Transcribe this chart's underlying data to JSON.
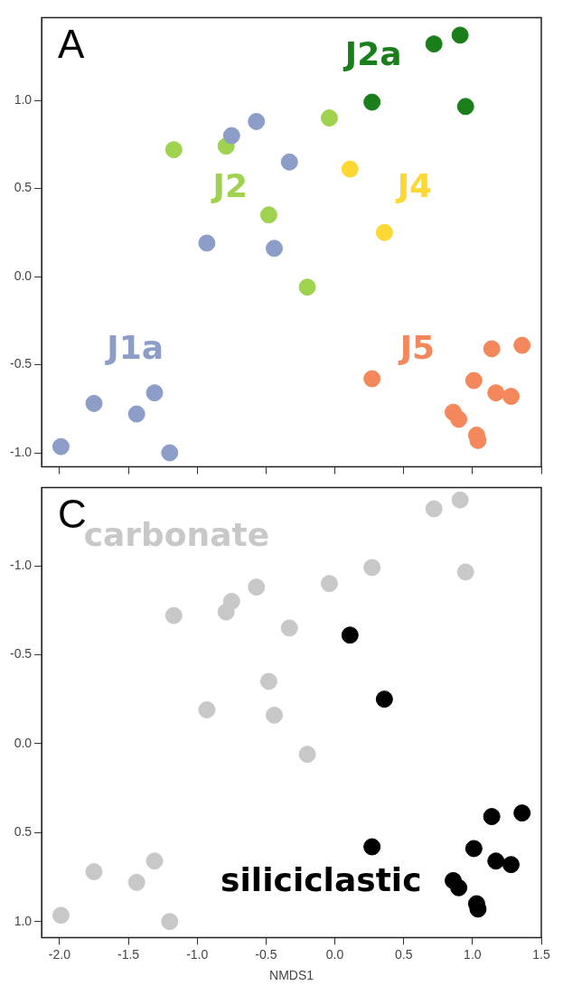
{
  "chart_data": [
    {
      "type": "scatter",
      "title": "A",
      "xlim": [
        -2.13,
        1.5
      ],
      "ylim": [
        -1.08,
        1.47
      ],
      "xticks": [
        {
          "value": -2.0,
          "label": null
        },
        {
          "value": -1.5,
          "label": null
        },
        {
          "value": -1.0,
          "label": null
        },
        {
          "value": -0.5,
          "label": null
        },
        {
          "value": 0.0,
          "label": null
        },
        {
          "value": 0.5,
          "label": null
        },
        {
          "value": 1.0,
          "label": null
        },
        {
          "value": 1.5,
          "label": null
        }
      ],
      "yticks": [
        {
          "value": -1.0,
          "label": "-1.0"
        },
        {
          "value": -0.5,
          "label": "-0.5"
        },
        {
          "value": 0.0,
          "label": "0.0"
        },
        {
          "value": 0.5,
          "label": "0.5"
        },
        {
          "value": 1.0,
          "label": "1.0"
        }
      ],
      "tick_labels": "y",
      "grid": false,
      "legend": false,
      "marker": "circle",
      "series": [
        {
          "name": "J1a",
          "color": "#8c9dc8",
          "x": [
            -1.99,
            -1.75,
            -1.44,
            -1.31,
            -1.2,
            -0.93,
            -0.75,
            -0.57,
            -0.33,
            -0.44
          ],
          "values": [
            -0.965,
            -0.72,
            -0.78,
            -0.66,
            -1.0,
            0.19,
            0.8,
            0.88,
            0.65,
            0.16
          ]
        },
        {
          "name": "J2",
          "color": "#9fd24f",
          "x": [
            -1.17,
            -0.79,
            -0.48,
            -0.2,
            -0.04
          ],
          "values": [
            0.72,
            0.74,
            0.35,
            -0.06,
            0.9
          ]
        },
        {
          "name": "J2a",
          "color": "#1a7f1a",
          "x": [
            0.27,
            0.72,
            0.91,
            0.95
          ],
          "values": [
            0.99,
            1.32,
            1.37,
            0.965
          ]
        },
        {
          "name": "J4",
          "color": "#fdd835",
          "x": [
            0.11,
            0.36
          ],
          "values": [
            0.61,
            0.25
          ]
        },
        {
          "name": "J5",
          "color": "#f4875c",
          "x": [
            0.27,
            1.14,
            1.36,
            1.01,
            1.17,
            1.28,
            0.86,
            0.9,
            1.03,
            1.04
          ],
          "values": [
            -0.58,
            -0.41,
            -0.39,
            -0.59,
            -0.66,
            -0.68,
            -0.77,
            -0.81,
            -0.9,
            -0.93
          ]
        }
      ]
    },
    {
      "type": "scatter",
      "title": "C",
      "xlabel": "NMDS1",
      "xlim": [
        -2.13,
        1.5
      ],
      "ylim": [
        1.09,
        -1.44
      ],
      "xticks": [
        {
          "value": -2.0,
          "label": "-2.0"
        },
        {
          "value": -1.5,
          "label": "-1.5"
        },
        {
          "value": -1.0,
          "label": "-1.0"
        },
        {
          "value": -0.5,
          "label": "-0.5"
        },
        {
          "value": 0.0,
          "label": "0.0"
        },
        {
          "value": 0.5,
          "label": "0.5"
        },
        {
          "value": 1.0,
          "label": "1.0"
        },
        {
          "value": 1.5,
          "label": "1.5"
        }
      ],
      "yticks": [
        {
          "value": -1.0,
          "label": "-1.0"
        },
        {
          "value": -0.5,
          "label": "-0.5"
        },
        {
          "value": 0.0,
          "label": "0.0"
        },
        {
          "value": 0.5,
          "label": "0.5"
        },
        {
          "value": 1.0,
          "label": "1.0"
        }
      ],
      "grid": false,
      "legend": false,
      "marker": "circle",
      "series": [
        {
          "name": "carbonate",
          "color": "#c8c8c8",
          "x": [
            -1.99,
            -1.75,
            -1.44,
            -1.31,
            -1.2,
            -0.93,
            -0.75,
            -0.57,
            -0.33,
            -0.44,
            -1.17,
            -0.79,
            -0.48,
            -0.2,
            -0.04,
            0.27,
            0.72,
            0.91,
            0.95
          ],
          "values": [
            0.965,
            0.72,
            0.78,
            0.66,
            1.0,
            -0.19,
            -0.8,
            -0.88,
            -0.65,
            -0.16,
            -0.72,
            -0.74,
            -0.35,
            0.06,
            -0.9,
            -0.99,
            -1.32,
            -1.37,
            -0.965
          ]
        },
        {
          "name": "siliciclastic",
          "color": "#000000",
          "x": [
            0.11,
            0.36,
            0.27,
            1.14,
            1.36,
            1.01,
            1.17,
            1.28,
            0.86,
            0.9,
            1.03,
            1.04
          ],
          "values": [
            -0.61,
            -0.25,
            0.58,
            0.41,
            0.39,
            0.59,
            0.66,
            0.68,
            0.77,
            0.81,
            0.9,
            0.93
          ]
        }
      ]
    }
  ]
}
